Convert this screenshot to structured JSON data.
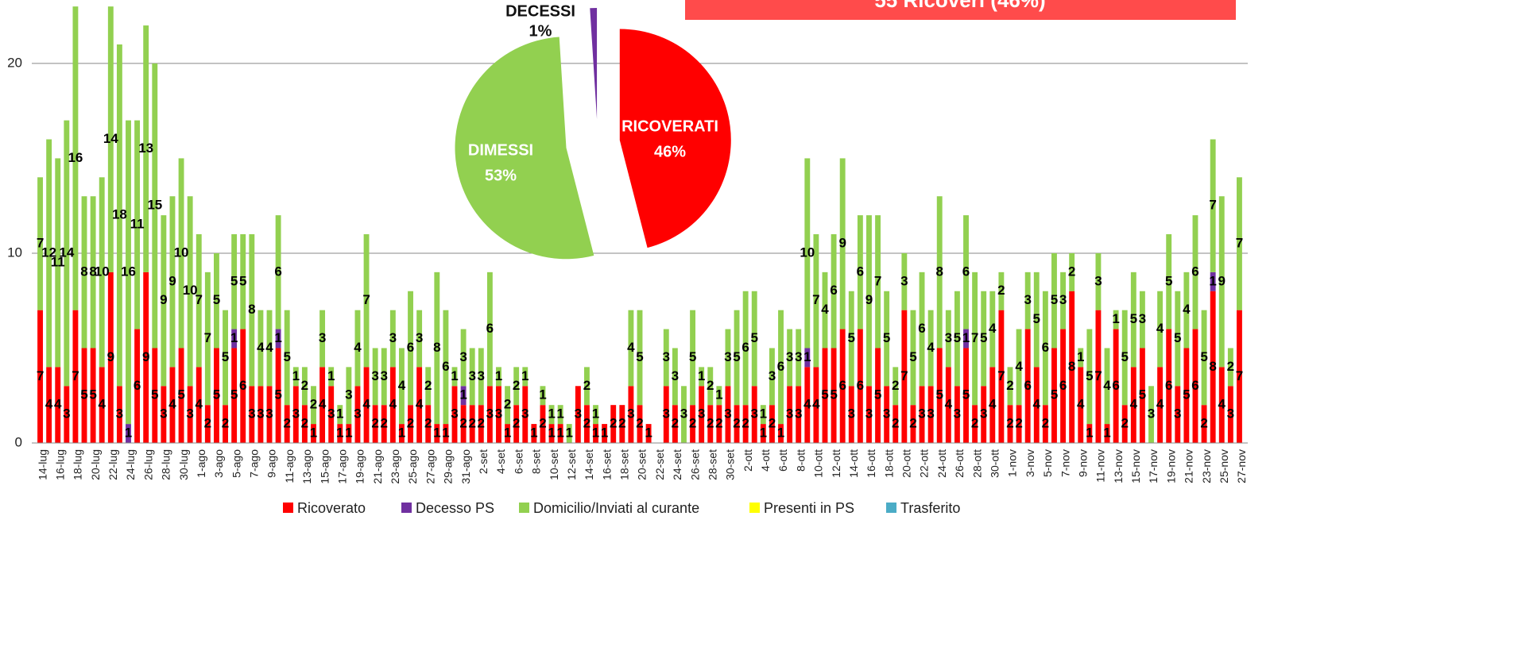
{
  "banner": {
    "text": "55 Ricoveri  (46%)"
  },
  "chart_data": [
    {
      "type": "bar",
      "stacked": true,
      "grid": true,
      "ylim": [
        0,
        23.3
      ],
      "yticks": [
        0,
        10,
        20
      ],
      "categories": [
        "14-lug",
        null,
        "16-lug",
        null,
        "18-lug",
        null,
        "20-lug",
        null,
        "22-lug",
        null,
        "24-lug",
        null,
        "26-lug",
        null,
        "28-lug",
        null,
        "30-lug",
        null,
        "1-ago",
        null,
        "3-ago",
        null,
        "5-ago",
        null,
        "7-ago",
        null,
        "9-ago",
        null,
        "11-ago",
        null,
        "13-ago",
        null,
        "15-ago",
        null,
        "17-ago",
        null,
        "19-ago",
        null,
        "21-ago",
        null,
        "23-ago",
        null,
        "25-ago",
        null,
        "27-ago",
        null,
        "29-ago",
        null,
        "31-ago",
        null,
        "2-set",
        null,
        "4-set",
        null,
        "6-set",
        null,
        "8-set",
        null,
        "10-set",
        null,
        "12-set",
        null,
        "14-set",
        null,
        "16-set",
        null,
        "18-set",
        null,
        "20-set",
        null,
        "22-set",
        null,
        "24-set",
        null,
        "26-set",
        null,
        "28-set",
        null,
        "30-set",
        null,
        "2-ott",
        null,
        "4-ott",
        null,
        "6-ott",
        null,
        "8-ott",
        null,
        "10-ott",
        null,
        "12-ott",
        null,
        "14-ott",
        null,
        "16-ott",
        null,
        "18-ott",
        null,
        "20-ott",
        null,
        "22-ott",
        null,
        "24-ott",
        null,
        "26-ott",
        null,
        "28-ott",
        null,
        "30-ott",
        null,
        "1-nov",
        null,
        "3-nov",
        null,
        "5-nov",
        null,
        "7-nov",
        null,
        "9-nov",
        null,
        "11-nov",
        null,
        "13-nov",
        null,
        "15-nov",
        null,
        "17-nov",
        null,
        "19-nov",
        null,
        "21-nov",
        null,
        "23-nov",
        null,
        "25-nov",
        null,
        "27-nov"
      ],
      "series": [
        {
          "name": "Ricoverato",
          "color": "#ff0000",
          "values": [
            7,
            4,
            4,
            3,
            7,
            5,
            5,
            4,
            9,
            3,
            0,
            6,
            9,
            5,
            3,
            4,
            5,
            3,
            4,
            2,
            5,
            2,
            5,
            6,
            3,
            3,
            3,
            5,
            2,
            3,
            2,
            1,
            4,
            3,
            1,
            1,
            3,
            4,
            2,
            2,
            4,
            1,
            2,
            4,
            2,
            1,
            1,
            3,
            2,
            2,
            2,
            3,
            3,
            1,
            2,
            3,
            1,
            2,
            1,
            1,
            0,
            3,
            2,
            1,
            1,
            2,
            2,
            3,
            2,
            1,
            0,
            3,
            2,
            0,
            2,
            3,
            2,
            2,
            3,
            2,
            2,
            3,
            1,
            2,
            1,
            3,
            3,
            4,
            4,
            5,
            5,
            6,
            3,
            6,
            3,
            5,
            3,
            2,
            7,
            2,
            3,
            3,
            5,
            4,
            3,
            5,
            2,
            3,
            4,
            7,
            2,
            2,
            6,
            4,
            2,
            5,
            6,
            8,
            4,
            1,
            7,
            1,
            6,
            2,
            4,
            5,
            0,
            4,
            6,
            3,
            5,
            6,
            2,
            8,
            4,
            3,
            7
          ]
        },
        {
          "name": "Decesso PS",
          "color": "#7030a0",
          "values": [
            0,
            0,
            0,
            0,
            0,
            0,
            0,
            0,
            0,
            0,
            1,
            0,
            0,
            0,
            0,
            0,
            0,
            0,
            0,
            0,
            0,
            0,
            1,
            0,
            0,
            0,
            0,
            1,
            0,
            0,
            0,
            0,
            0,
            0,
            0,
            0,
            0,
            0,
            0,
            0,
            0,
            0,
            0,
            0,
            0,
            0,
            0,
            0,
            1,
            0,
            0,
            0,
            0,
            0,
            0,
            0,
            0,
            0,
            0,
            0,
            0,
            0,
            0,
            0,
            0,
            0,
            0,
            0,
            0,
            0,
            0,
            0,
            0,
            0,
            0,
            0,
            0,
            0,
            0,
            0,
            0,
            0,
            0,
            0,
            0,
            0,
            0,
            1,
            0,
            0,
            0,
            0,
            0,
            0,
            0,
            0,
            0,
            0,
            0,
            0,
            0,
            0,
            0,
            0,
            0,
            1,
            0,
            0,
            0,
            0,
            0,
            0,
            0,
            0,
            0,
            0,
            0,
            0,
            0,
            0,
            0,
            0,
            0,
            0,
            0,
            0,
            0,
            0,
            0,
            0,
            0,
            0,
            0,
            1,
            0,
            0,
            0
          ]
        },
        {
          "name": "Domicilio/Inviati al curante",
          "color": "#92d050",
          "values": [
            7,
            12,
            11,
            14,
            16,
            8,
            8,
            10,
            14,
            18,
            16,
            11,
            13,
            15,
            9,
            9,
            10,
            10,
            7,
            7,
            5,
            5,
            5,
            5,
            8,
            4,
            4,
            6,
            5,
            1,
            2,
            2,
            3,
            1,
            1,
            3,
            4,
            7,
            3,
            3,
            3,
            4,
            6,
            3,
            2,
            8,
            6,
            1,
            3,
            3,
            3,
            6,
            1,
            2,
            2,
            1,
            0,
            1,
            1,
            1,
            1,
            0,
            2,
            1,
            0,
            0,
            0,
            4,
            5,
            0,
            0,
            3,
            3,
            3,
            5,
            1,
            2,
            1,
            3,
            5,
            6,
            5,
            1,
            3,
            6,
            3,
            3,
            10,
            7,
            4,
            6,
            9,
            5,
            6,
            9,
            7,
            5,
            2,
            3,
            5,
            6,
            4,
            8,
            3,
            5,
            6,
            7,
            5,
            4,
            2,
            2,
            4,
            3,
            5,
            6,
            5,
            3,
            2,
            1,
            5,
            3,
            4,
            1,
            5,
            5,
            3,
            3,
            4,
            5,
            5,
            4,
            6,
            5,
            7,
            9,
            2,
            7
          ]
        },
        {
          "name": "Presenti in PS",
          "color": "#ffff00",
          "values": [
            0,
            0,
            0,
            0,
            0,
            0,
            0,
            0,
            0,
            0,
            0,
            0,
            0,
            0,
            0,
            0,
            0,
            0,
            0,
            0,
            0,
            0,
            0,
            0,
            0,
            0,
            0,
            0,
            0,
            0,
            0,
            0,
            0,
            0,
            0,
            0,
            0,
            0,
            0,
            0,
            0,
            0,
            0,
            0,
            0,
            0,
            0,
            0,
            0,
            0,
            0,
            0,
            0,
            0,
            0,
            0,
            0,
            0,
            0,
            0,
            0,
            0,
            0,
            0,
            0,
            0,
            0,
            0,
            0,
            0,
            0,
            0,
            0,
            0,
            0,
            0,
            0,
            0,
            0,
            0,
            0,
            0,
            0,
            0,
            0,
            0,
            0,
            0,
            0,
            0,
            0,
            0,
            0,
            0,
            0,
            0,
            0,
            0,
            0,
            0,
            0,
            0,
            0,
            0,
            0,
            0,
            0,
            0,
            0,
            0,
            0,
            0,
            0,
            0,
            0,
            0,
            0,
            0,
            0,
            0,
            0,
            0,
            0,
            0,
            0,
            0,
            0,
            0,
            0,
            0,
            0,
            0,
            0,
            0,
            0,
            0,
            0
          ]
        },
        {
          "name": "Trasferito",
          "color": "#4bacc6",
          "values": [
            0,
            0,
            0,
            0,
            0,
            0,
            0,
            0,
            0,
            0,
            0,
            0,
            0,
            0,
            0,
            0,
            0,
            0,
            0,
            0,
            0,
            0,
            0,
            0,
            0,
            0,
            0,
            0,
            0,
            0,
            0,
            0,
            0,
            0,
            0,
            0,
            0,
            0,
            0,
            0,
            0,
            0,
            0,
            0,
            0,
            0,
            0,
            0,
            0,
            0,
            0,
            0,
            0,
            0,
            0,
            0,
            0,
            0,
            0,
            0,
            0,
            0,
            0,
            0,
            0,
            0,
            0,
            0,
            0,
            0,
            0,
            0,
            0,
            0,
            0,
            0,
            0,
            0,
            0,
            0,
            0,
            0,
            0,
            0,
            0,
            0,
            0,
            0,
            0,
            0,
            0,
            0,
            0,
            0,
            0,
            0,
            0,
            0,
            0,
            0,
            0,
            0,
            0,
            0,
            0,
            0,
            0,
            0,
            0,
            0,
            0,
            0,
            0,
            0,
            0,
            0,
            0,
            0,
            0,
            0,
            0,
            0,
            0,
            0,
            0,
            0,
            0,
            0,
            0,
            0,
            0,
            0,
            0,
            0,
            0,
            0,
            0
          ]
        }
      ]
    },
    {
      "type": "pie",
      "categories": [
        "DECESSI",
        "DIMESSI",
        "RICOVERATI"
      ],
      "values": [
        1,
        53,
        46
      ],
      "value_labels": [
        "1%",
        "53%",
        "46%"
      ],
      "colors": [
        "#7030a0",
        "#92d050",
        "#ff0000"
      ]
    }
  ]
}
